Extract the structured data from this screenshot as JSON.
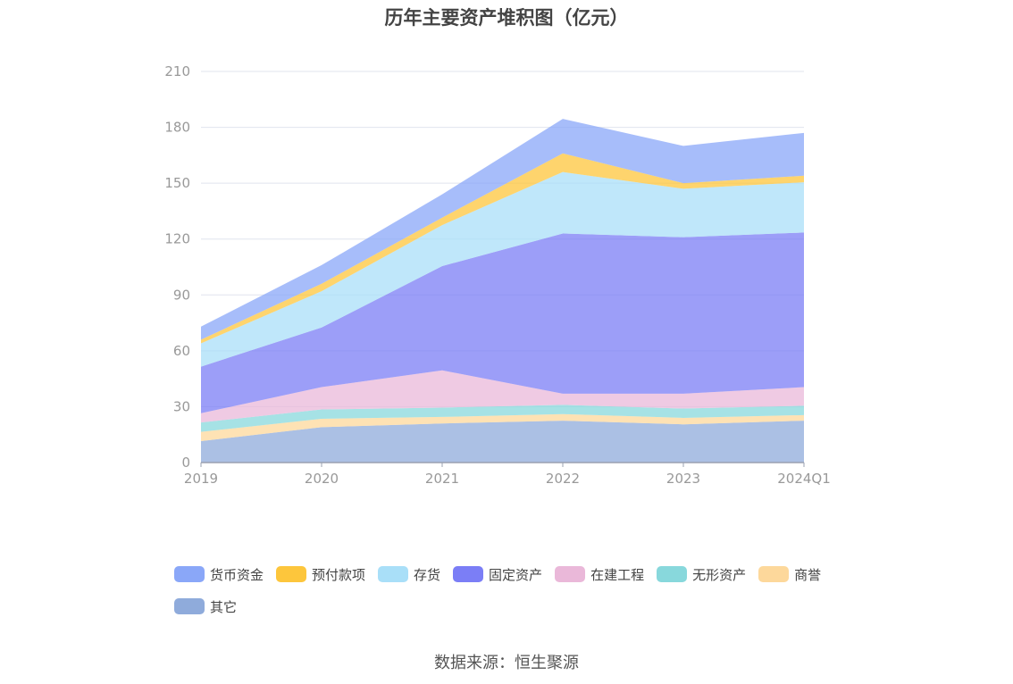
{
  "chart_data": {
    "type": "area",
    "stacked": true,
    "title": "历年主要资产堆积图（亿元）",
    "xlabel": "",
    "ylabel": "",
    "categories": [
      "2019",
      "2020",
      "2021",
      "2022",
      "2023",
      "2024Q1"
    ],
    "ylim": [
      0,
      210
    ],
    "yticks": [
      0,
      30,
      60,
      90,
      120,
      150,
      180,
      210
    ],
    "grid": true,
    "legend_position": "bottom",
    "series": [
      {
        "name": "其它",
        "color": "#8fabdb",
        "values": [
          11.5,
          19,
          21,
          22.5,
          20.5,
          22.5
        ]
      },
      {
        "name": "商誉",
        "color": "#fdd89b",
        "values": [
          5,
          4.5,
          3.5,
          3.5,
          3.5,
          3
        ]
      },
      {
        "name": "无形资产",
        "color": "#88d8dc",
        "values": [
          5,
          5,
          5,
          5,
          5,
          5
        ]
      },
      {
        "name": "在建工程",
        "color": "#eab8d9",
        "values": [
          5,
          12,
          20,
          6,
          8,
          10
        ]
      },
      {
        "name": "固定资产",
        "color": "#7b7ef6",
        "values": [
          25,
          32,
          56,
          86,
          84,
          83
        ]
      },
      {
        "name": "存货",
        "color": "#a9dff8",
        "values": [
          12.5,
          19.5,
          22,
          33,
          26,
          27
        ]
      },
      {
        "name": "预付款项",
        "color": "#fdc63c",
        "values": [
          2,
          4,
          4,
          10,
          3,
          3.5
        ]
      },
      {
        "name": "货币资金",
        "color": "#8aa7f8",
        "values": [
          7,
          10,
          12.5,
          18.5,
          20,
          23
        ]
      }
    ],
    "legend_order": [
      "货币资金",
      "预付款项",
      "存货",
      "固定资产",
      "在建工程",
      "无形资产",
      "商誉",
      "其它"
    ]
  },
  "source": "数据来源：恒生聚源"
}
